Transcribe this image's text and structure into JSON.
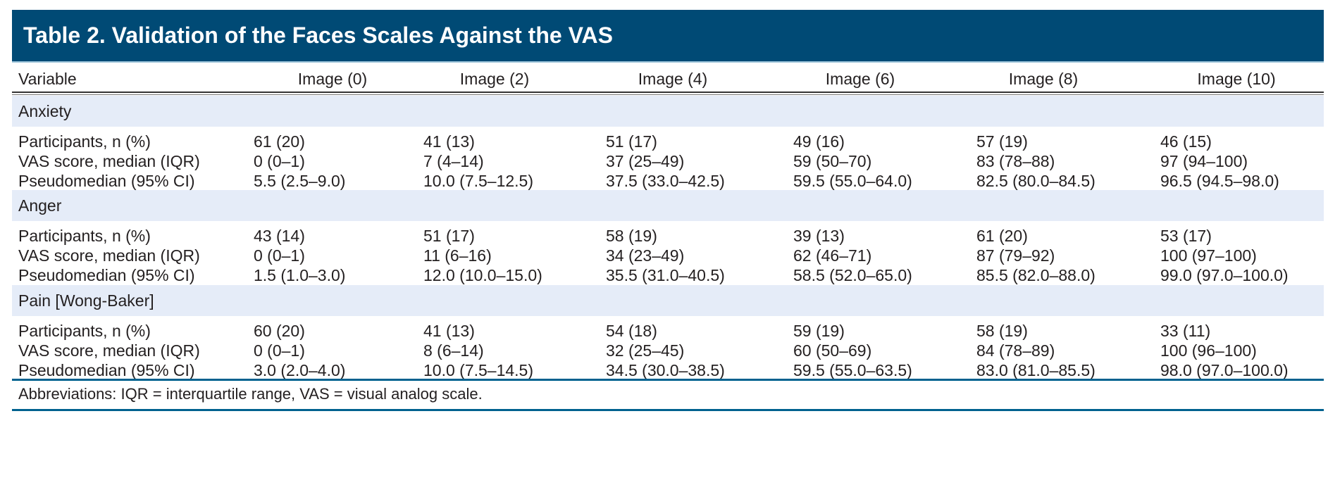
{
  "title": "Table 2. Validation of the Faces Scales Against the VAS",
  "columns": [
    "Variable",
    "Image (0)",
    "Image (2)",
    "Image (4)",
    "Image (6)",
    "Image (8)",
    "Image (10)"
  ],
  "groups": [
    {
      "label": "Anxiety",
      "rows": [
        {
          "label": "Participants, n (%)",
          "values": [
            "61 (20)",
            "41 (13)",
            "51 (17)",
            "49 (16)",
            "57 (19)",
            "46 (15)"
          ]
        },
        {
          "label": "VAS score, median (IQR)",
          "values": [
            "0 (0–1)",
            "7 (4–14)",
            "37 (25–49)",
            "59 (50–70)",
            "83 (78–88)",
            "97 (94–100)"
          ]
        },
        {
          "label": "Pseudomedian (95% CI)",
          "values": [
            "5.5 (2.5–9.0)",
            "10.0 (7.5–12.5)",
            "37.5 (33.0–42.5)",
            "59.5 (55.0–64.0)",
            "82.5 (80.0–84.5)",
            "96.5 (94.5–98.0)"
          ]
        }
      ]
    },
    {
      "label": "Anger",
      "rows": [
        {
          "label": "Participants, n (%)",
          "values": [
            "43 (14)",
            "51 (17)",
            "58 (19)",
            "39 (13)",
            "61 (20)",
            "53 (17)"
          ]
        },
        {
          "label": "VAS score, median (IQR)",
          "values": [
            "0 (0–1)",
            "11 (6–16)",
            "34 (23–49)",
            "62 (46–71)",
            "87 (79–92)",
            "100 (97–100)"
          ]
        },
        {
          "label": "Pseudomedian (95% CI)",
          "values": [
            "1.5 (1.0–3.0)",
            "12.0 (10.0–15.0)",
            "35.5 (31.0–40.5)",
            "58.5 (52.0–65.0)",
            "85.5 (82.0–88.0)",
            "99.0 (97.0–100.0)"
          ]
        }
      ]
    },
    {
      "label": "Pain [Wong-Baker]",
      "rows": [
        {
          "label": "Participants, n (%)",
          "values": [
            "60 (20)",
            "41 (13)",
            "54 (18)",
            "59 (19)",
            "58 (19)",
            "33 (11)"
          ]
        },
        {
          "label": "VAS score, median (IQR)",
          "values": [
            "0 (0–1)",
            "8 (6–14)",
            "32 (25–45)",
            "60 (50–69)",
            "84 (78–89)",
            "100 (96–100)"
          ]
        },
        {
          "label": "Pseudomedian (95% CI)",
          "values": [
            "3.0 (2.0–4.0)",
            "10.0 (7.5–14.5)",
            "34.5 (30.0–38.5)",
            "59.5 (55.0–63.5)",
            "83.0 (81.0–85.5)",
            "98.0 (97.0–100.0)"
          ]
        }
      ]
    }
  ],
  "footnote": "Abbreviations: IQR = interquartile range, VAS = visual analog scale.",
  "colors": {
    "title_band": "#004a75",
    "group_band": "#e5ecf8",
    "rule": "#00618f"
  }
}
